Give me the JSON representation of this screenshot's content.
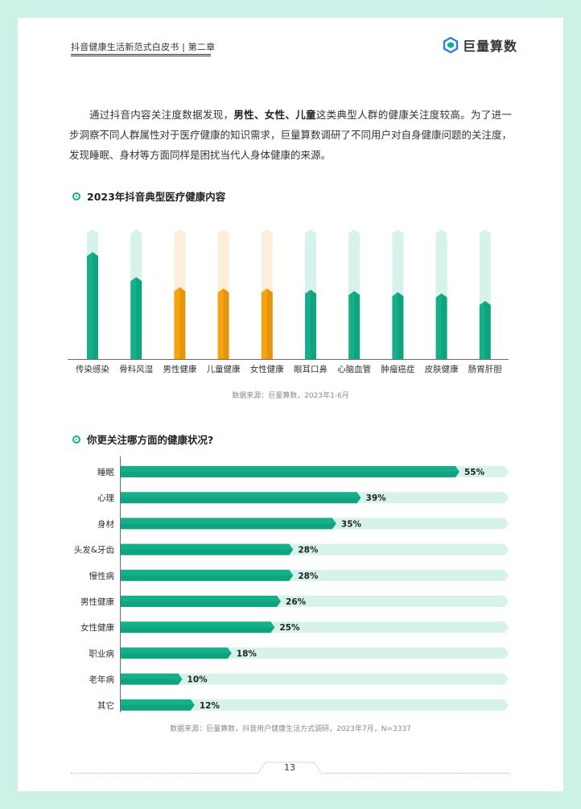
{
  "header": {
    "doc_title": "抖音健康生活新范式白皮书 | 第二章",
    "brand_name": "巨量算数"
  },
  "intro": {
    "p1": "通过抖音内容关注度数据发现，",
    "b1": "男性、女性、儿童",
    "p2": "这类典型人群的健康关注度较高。为了进一步洞察不同人群属性对于医疗健康的知识需求，巨量算数调研了不同用户对自身健康问题的关注度，发现睡眠、身材等方面同样是困扰当代人身体健康的来源。"
  },
  "section1": {
    "title": "2023年抖音典型医疗健康内容",
    "source": "数据来源：巨量算数，2023年1-6月"
  },
  "section2": {
    "title": "你更关注哪方面的健康状况?",
    "source": "数据来源：巨量算数，抖音用户健康生活方式调研，2023年7月，N=3337"
  },
  "colors": {
    "green": "#13b08a",
    "green_light": "#d6f2eb",
    "orange": "#f7a20f",
    "orange_light": "#fdeedb"
  },
  "page_number": "13",
  "chart_data": [
    {
      "type": "bar",
      "orientation": "vertical",
      "title": "2023年抖音典型医疗健康内容",
      "categories": [
        "传染感染",
        "骨科风湿",
        "男性健康",
        "儿童健康",
        "女性健康",
        "眼耳口鼻",
        "心脑血管",
        "肿瘤癌症",
        "皮肤健康",
        "肠胃肝胆"
      ],
      "values": [
        82,
        62,
        54,
        53,
        53,
        52,
        51,
        50,
        49,
        43
      ],
      "value_scale": "relative, 0-100 (no axis printed)",
      "highlight": [
        "男性健康",
        "儿童健康",
        "女性健康"
      ],
      "ylim": [
        0,
        100
      ],
      "grid": false
    },
    {
      "type": "bar",
      "orientation": "horizontal",
      "title": "你更关注哪方面的健康状况?",
      "categories": [
        "睡眠",
        "心理",
        "身材",
        "头发&牙齿",
        "慢性病",
        "男性健康",
        "女性健康",
        "职业病",
        "老年病",
        "其它"
      ],
      "values": [
        55,
        39,
        35,
        28,
        28,
        26,
        25,
        18,
        10,
        12
      ],
      "labels": [
        "55%",
        "39%",
        "35%",
        "28%",
        "28%",
        "26%",
        "25%",
        "18%",
        "10%",
        "12%"
      ],
      "unit": "%",
      "xlim": [
        0,
        55
      ],
      "grid": false
    }
  ]
}
